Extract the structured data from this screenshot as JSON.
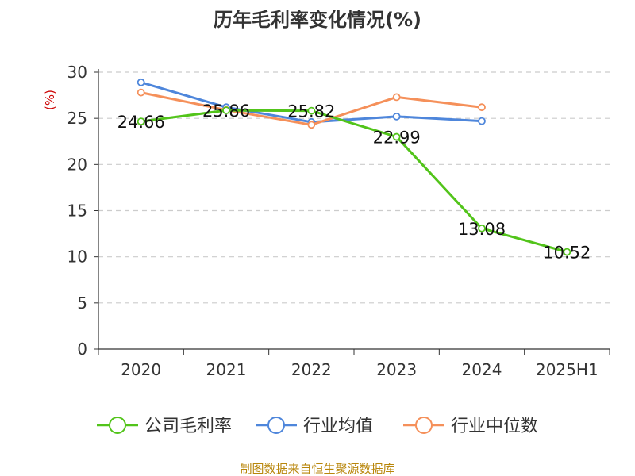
{
  "chart_data": {
    "type": "line",
    "title": "历年毛利率变化情况(%)",
    "y_unit": "(%)",
    "categories": [
      "2020",
      "2021",
      "2022",
      "2023",
      "2024",
      "2025H1"
    ],
    "yticks": [
      "0",
      "5",
      "10",
      "15",
      "20",
      "25",
      "30"
    ],
    "ylim": [
      0,
      30
    ],
    "grid": true,
    "legend_position": "bottom",
    "series": [
      {
        "name": "公司毛利率",
        "color": "#52c41a",
        "values": [
          24.66,
          25.86,
          25.82,
          22.99,
          13.08,
          10.52
        ],
        "labels": [
          "24.66",
          "25.86",
          "25.82",
          "22.99",
          "13.08",
          "10.52"
        ]
      },
      {
        "name": "行业均值",
        "color": "#4e86db",
        "values": [
          28.9,
          26.2,
          24.6,
          25.2,
          24.7,
          null
        ]
      },
      {
        "name": "行业中位数",
        "color": "#f5905a",
        "values": [
          27.8,
          25.9,
          24.3,
          27.3,
          26.2,
          null
        ]
      }
    ]
  },
  "source": "制图数据来自恒生聚源数据库"
}
